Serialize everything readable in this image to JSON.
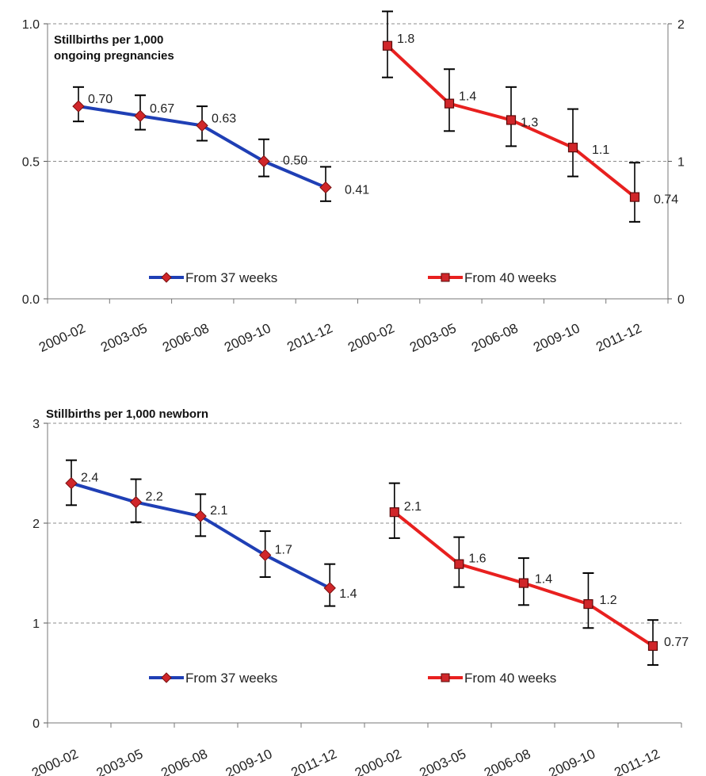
{
  "chart_data": [
    {
      "type": "line",
      "title_lines": [
        "Stillbirths  per 1,000",
        "ongoing pregnancies"
      ],
      "left_axis": {
        "ylim": [
          0,
          1.0
        ],
        "ticks": [
          "0.0",
          "0.5",
          "1.0"
        ]
      },
      "right_axis": {
        "ylim": [
          0,
          2
        ],
        "ticks": [
          "0",
          "1",
          "2"
        ]
      },
      "grid": true,
      "legend_placement": "bottom",
      "series": [
        {
          "name": "From 37 weeks",
          "axis": "left",
          "color": "#1f3fb5",
          "marker": "diamond",
          "marker_color": "#d0262a",
          "categories": [
            "2000-02",
            "2003-05",
            "2006-08",
            "2009-10",
            "2011-12"
          ],
          "values": [
            0.7,
            0.665,
            0.63,
            0.5,
            0.405
          ],
          "ci_low": [
            0.645,
            0.615,
            0.575,
            0.445,
            0.355
          ],
          "ci_high": [
            0.77,
            0.74,
            0.7,
            0.58,
            0.48
          ],
          "labels": [
            "0.70",
            "0.67",
            "0.63",
            "0.50",
            "0.41"
          ]
        },
        {
          "name": "From 40 weeks",
          "axis": "right",
          "color": "#e8201f",
          "marker": "square",
          "marker_color": "#d0262a",
          "categories": [
            "2000-02",
            "2003-05",
            "2006-08",
            "2009-10",
            "2011-12"
          ],
          "values": [
            1.84,
            1.42,
            1.3,
            1.1,
            0.74
          ],
          "ci_low": [
            1.61,
            1.22,
            1.11,
            0.89,
            0.56
          ],
          "ci_high": [
            2.09,
            1.67,
            1.54,
            1.38,
            0.99
          ],
          "labels": [
            "1.8",
            "1.4",
            "1.3",
            "1.1",
            "0.74"
          ]
        }
      ]
    },
    {
      "type": "line",
      "title_lines": [
        "Stillbirths  per 1,000  newborn"
      ],
      "left_axis": {
        "ylim": [
          0,
          3
        ],
        "ticks": [
          "0",
          "1",
          "2",
          "3"
        ]
      },
      "grid": true,
      "legend_placement": "bottom",
      "series": [
        {
          "name": "From 37 weeks",
          "axis": "left",
          "color": "#1f3fb5",
          "marker": "diamond",
          "marker_color": "#d0262a",
          "categories": [
            "2000-02",
            "2003-05",
            "2006-08",
            "2009-10",
            "2011-12"
          ],
          "values": [
            2.4,
            2.21,
            2.07,
            1.68,
            1.35
          ],
          "ci_low": [
            2.18,
            2.01,
            1.87,
            1.46,
            1.17
          ],
          "ci_high": [
            2.63,
            2.44,
            2.29,
            1.92,
            1.59
          ],
          "labels": [
            "2.4",
            "2.2",
            "2.1",
            "1.7",
            "1.4"
          ]
        },
        {
          "name": "From 40 weeks",
          "axis": "left",
          "color": "#e8201f",
          "marker": "square",
          "marker_color": "#d0262a",
          "categories": [
            "2000-02",
            "2003-05",
            "2006-08",
            "2009-10",
            "2011-12"
          ],
          "values": [
            2.11,
            1.59,
            1.4,
            1.19,
            0.77
          ],
          "ci_low": [
            1.85,
            1.36,
            1.18,
            0.95,
            0.58
          ],
          "ci_high": [
            2.4,
            1.86,
            1.65,
            1.5,
            1.03
          ],
          "labels": [
            "2.1",
            "1.6",
            "1.4",
            "1.2",
            "0.77"
          ]
        }
      ]
    }
  ]
}
